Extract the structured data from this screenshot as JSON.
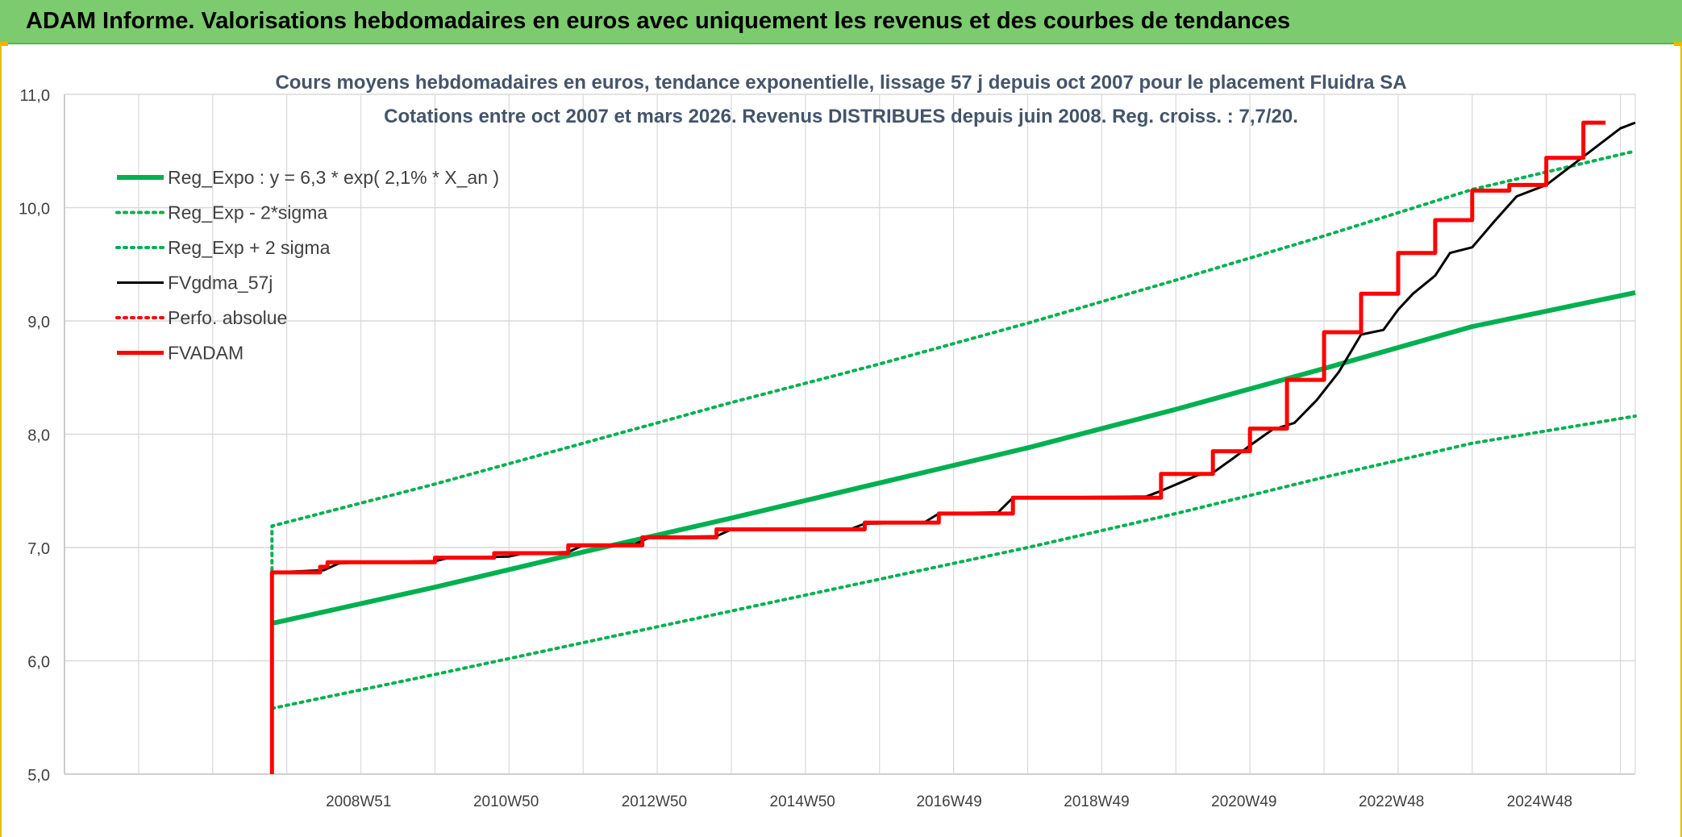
{
  "header": {
    "title": "ADAM Informe. Valorisations hebdomadaires en euros avec uniquement les revenus et des courbes de tendances"
  },
  "chart_data": {
    "type": "line",
    "title": "Cours moyens hebdomadaires en euros, tendance exponentielle, lissage 57 j depuis oct 2007 pour le placement Fluidra SA",
    "subtitle": "Cotations entre oct 2007 et mars 2026. Revenus DISTRIBUES depuis juin 2008. Reg. croiss. : 7,7/20.",
    "xlabel": "",
    "ylabel": "",
    "ylim": [
      5.0,
      11.0
    ],
    "y_ticks": [
      "5,0",
      "6,0",
      "7,0",
      "8,0",
      "9,0",
      "10,0",
      "11,0"
    ],
    "x_range": [
      2005.0,
      2026.2
    ],
    "x_tick_positions": [
      2008.97,
      2010.96,
      2012.96,
      2014.96,
      2016.94,
      2018.93,
      2020.92,
      2022.91,
      2024.91
    ],
    "x_tick_labels": [
      "2008W51",
      "2010W50",
      "2012W50",
      "2014W50",
      "2016W49",
      "2018W49",
      "2020W49",
      "2022W48",
      "2024W48"
    ],
    "grid": true,
    "legend_placement": "top-left",
    "series": [
      {
        "name": "Reg_Expo : y = 6,3 * exp( 2,1% *  X_an )",
        "color": "#00b050",
        "style": "solid",
        "x": [
          2007.8,
          2010,
          2012,
          2014,
          2016,
          2018,
          2020,
          2022,
          2024,
          2026.2
        ],
        "values": [
          6.33,
          6.65,
          6.96,
          7.26,
          7.57,
          7.88,
          8.22,
          8.58,
          8.95,
          9.25
        ]
      },
      {
        "name": "Reg_Exp - 2*sigma",
        "color": "#00b050",
        "style": "dotted",
        "x": [
          2007.8,
          2010,
          2012,
          2014,
          2016,
          2018,
          2020,
          2022,
          2024,
          2026.2
        ],
        "values": [
          5.58,
          5.88,
          6.16,
          6.44,
          6.72,
          7.0,
          7.3,
          7.62,
          7.92,
          8.16
        ]
      },
      {
        "name": "Reg_Exp + 2 sigma",
        "color": "#00b050",
        "style": "dotted",
        "x": [
          2007.8,
          2007.8,
          2010,
          2012,
          2014,
          2016,
          2018,
          2020,
          2022,
          2024,
          2026.2
        ],
        "values": [
          6.8,
          7.19,
          7.56,
          7.92,
          8.28,
          8.62,
          8.98,
          9.36,
          9.75,
          10.16,
          10.5
        ]
      },
      {
        "name": "FVgdma_57j",
        "color": "#000000",
        "style": "solid",
        "x": [
          2007.8,
          2008.5,
          2008.7,
          2009.0,
          2010.0,
          2010.2,
          2011.0,
          2011.2,
          2011.8,
          2012.0,
          2012.7,
          2012.9,
          2013.8,
          2014.0,
          2015.6,
          2015.8,
          2016.6,
          2016.8,
          2017.6,
          2017.8,
          2019.6,
          2019.8,
          2020.3,
          2020.5,
          2020.8,
          2021.0,
          2021.3,
          2021.6,
          2021.9,
          2022.2,
          2022.5,
          2022.8,
          2023.0,
          2023.2,
          2023.5,
          2023.7,
          2024.0,
          2024.3,
          2024.6,
          2025.0,
          2025.4,
          2025.7,
          2026.0,
          2026.2
        ],
        "values": [
          6.78,
          6.8,
          6.86,
          6.87,
          6.88,
          6.91,
          6.92,
          6.95,
          6.96,
          7.02,
          7.03,
          7.09,
          7.1,
          7.16,
          7.16,
          7.21,
          7.22,
          7.3,
          7.31,
          7.44,
          7.45,
          7.5,
          7.64,
          7.66,
          7.8,
          7.9,
          8.04,
          8.1,
          8.3,
          8.55,
          8.88,
          8.92,
          9.1,
          9.24,
          9.4,
          9.6,
          9.65,
          9.88,
          10.1,
          10.2,
          10.4,
          10.55,
          10.7,
          10.75
        ]
      },
      {
        "name": "Perfo. absolue",
        "color": "#ff0000",
        "style": "dotted",
        "x": [],
        "values": []
      },
      {
        "name": "FVADAM",
        "color": "#ff0000",
        "style": "solid",
        "step": true,
        "x": [
          2007.8,
          2007.8,
          2008.45,
          2008.55,
          2010.0,
          2010.8,
          2011.8,
          2012.8,
          2013.8,
          2015.8,
          2016.8,
          2017.8,
          2019.8,
          2020.5,
          2021.0,
          2021.5,
          2022.0,
          2022.5,
          2023.0,
          2023.5,
          2024.0,
          2024.5,
          2025.0,
          2025.5,
          2025.8
        ],
        "values": [
          5.0,
          6.78,
          6.83,
          6.87,
          6.91,
          6.95,
          7.02,
          7.09,
          7.16,
          7.22,
          7.3,
          7.44,
          7.65,
          7.85,
          8.05,
          8.48,
          8.9,
          9.24,
          9.6,
          9.89,
          10.15,
          10.2,
          10.44,
          10.75,
          10.75
        ]
      }
    ]
  }
}
